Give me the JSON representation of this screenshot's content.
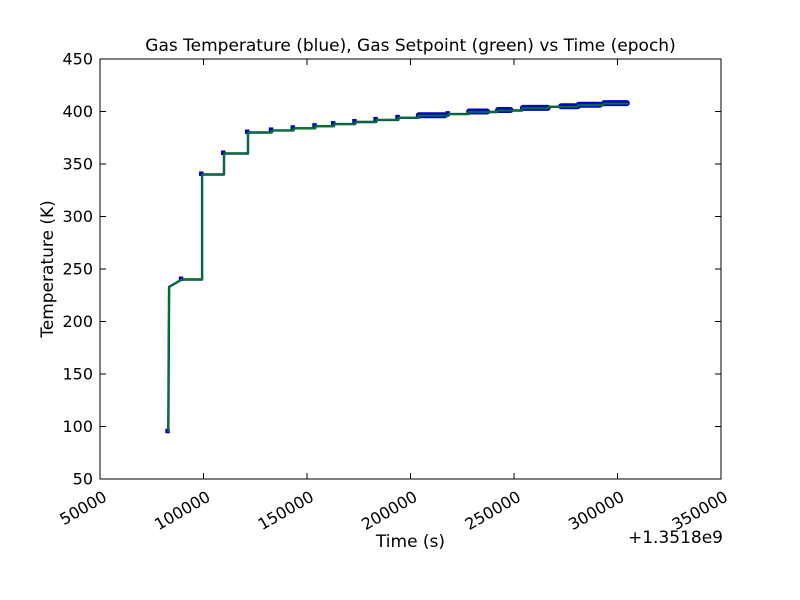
{
  "chart_data": {
    "type": "line",
    "title": "Gas Temperature (blue), Gas Setpoint (green) vs Time (epoch)",
    "xlabel": "Time (s)",
    "ylabel": "Temperature (K)",
    "x_offset_label": "+1.3518e9",
    "x_unit_note": "x tick values are seconds offset from +1.3518e9 epoch",
    "xlim": [
      50000,
      350000
    ],
    "ylim": [
      50,
      450
    ],
    "x_ticks": [
      50000,
      100000,
      150000,
      200000,
      250000,
      300000,
      350000
    ],
    "y_ticks": [
      50,
      100,
      150,
      200,
      250,
      300,
      350,
      400,
      450
    ],
    "x_tick_rotation_deg": -30,
    "grid": false,
    "legend_position": "none (series identified in title)",
    "background": "#ffffff",
    "axes_color": "#000000",
    "series": [
      {
        "name": "Gas Temperature",
        "color": "#0000d8",
        "style": "line with small square markers; mostly overdrawn by setpoint line, visible at step corners and as thick clusters late in the run",
        "points": [
          [
            83000,
            95
          ],
          [
            83400,
            233
          ],
          [
            89500,
            240
          ],
          [
            99300,
            240
          ],
          [
            99300,
            340
          ],
          [
            109900,
            340
          ],
          [
            109900,
            360
          ],
          [
            121500,
            360
          ],
          [
            121500,
            380
          ],
          [
            133000,
            380
          ],
          [
            133000,
            382
          ],
          [
            143500,
            382
          ],
          [
            143500,
            384
          ],
          [
            154000,
            384
          ],
          [
            154000,
            386
          ],
          [
            163000,
            386
          ],
          [
            163000,
            388
          ],
          [
            173300,
            388
          ],
          [
            173300,
            390
          ],
          [
            183500,
            390
          ],
          [
            183500,
            392
          ],
          [
            194100,
            392
          ],
          [
            194100,
            394
          ],
          [
            203800,
            394
          ],
          [
            203800,
            396
          ],
          [
            218300,
            396
          ],
          [
            218300,
            397.5
          ],
          [
            227900,
            397.5
          ],
          [
            227900,
            399.5
          ],
          [
            242000,
            399.5
          ],
          [
            242000,
            401
          ],
          [
            254000,
            401
          ],
          [
            254000,
            403
          ],
          [
            266500,
            403
          ],
          [
            266500,
            404.5
          ],
          [
            281000,
            404.5
          ],
          [
            281000,
            406
          ],
          [
            293200,
            406
          ],
          [
            293200,
            407.5
          ],
          [
            305000,
            407.5
          ],
          [
            305000,
            408
          ]
        ],
        "markers": [
          [
            83000,
            95
          ],
          [
            89500,
            240
          ],
          [
            99300,
            340
          ],
          [
            109900,
            360
          ],
          [
            121500,
            380
          ],
          [
            133000,
            382
          ],
          [
            143500,
            384
          ],
          [
            154000,
            386
          ],
          [
            163000,
            388
          ],
          [
            173300,
            390
          ],
          [
            183500,
            392
          ],
          [
            194100,
            394
          ],
          [
            218300,
            397.5
          ]
        ],
        "thick_segments": [
          [
            204000,
            216500,
            396
          ],
          [
            228300,
            237000,
            399.5
          ],
          [
            242300,
            248300,
            401
          ],
          [
            254300,
            266300,
            403
          ],
          [
            272800,
            280800,
            404.5
          ],
          [
            281300,
            291500,
            406
          ],
          [
            293500,
            304500,
            407.5
          ]
        ]
      },
      {
        "name": "Gas Setpoint",
        "color": "#008000",
        "style": "step line drawn on top of temperature line",
        "points": [
          [
            83000,
            95
          ],
          [
            83400,
            233
          ],
          [
            89500,
            240
          ],
          [
            99300,
            240
          ],
          [
            99300,
            340
          ],
          [
            109900,
            340
          ],
          [
            109900,
            360
          ],
          [
            121500,
            360
          ],
          [
            121500,
            380
          ],
          [
            133000,
            380
          ],
          [
            133000,
            382
          ],
          [
            143500,
            382
          ],
          [
            143500,
            384
          ],
          [
            154000,
            384
          ],
          [
            154000,
            386
          ],
          [
            163000,
            386
          ],
          [
            163000,
            388
          ],
          [
            173300,
            388
          ],
          [
            173300,
            390
          ],
          [
            183500,
            390
          ],
          [
            183500,
            392
          ],
          [
            194100,
            392
          ],
          [
            194100,
            394
          ],
          [
            203800,
            394
          ],
          [
            203800,
            396
          ],
          [
            218300,
            396
          ],
          [
            218300,
            397.5
          ],
          [
            227900,
            397.5
          ],
          [
            227900,
            399.5
          ],
          [
            242000,
            399.5
          ],
          [
            242000,
            401
          ],
          [
            254000,
            401
          ],
          [
            254000,
            403
          ],
          [
            266500,
            403
          ],
          [
            266500,
            404.5
          ],
          [
            281000,
            404.5
          ],
          [
            281000,
            406
          ],
          [
            293200,
            406
          ],
          [
            293200,
            407.5
          ],
          [
            305000,
            407.5
          ],
          [
            305000,
            408
          ]
        ]
      }
    ]
  }
}
